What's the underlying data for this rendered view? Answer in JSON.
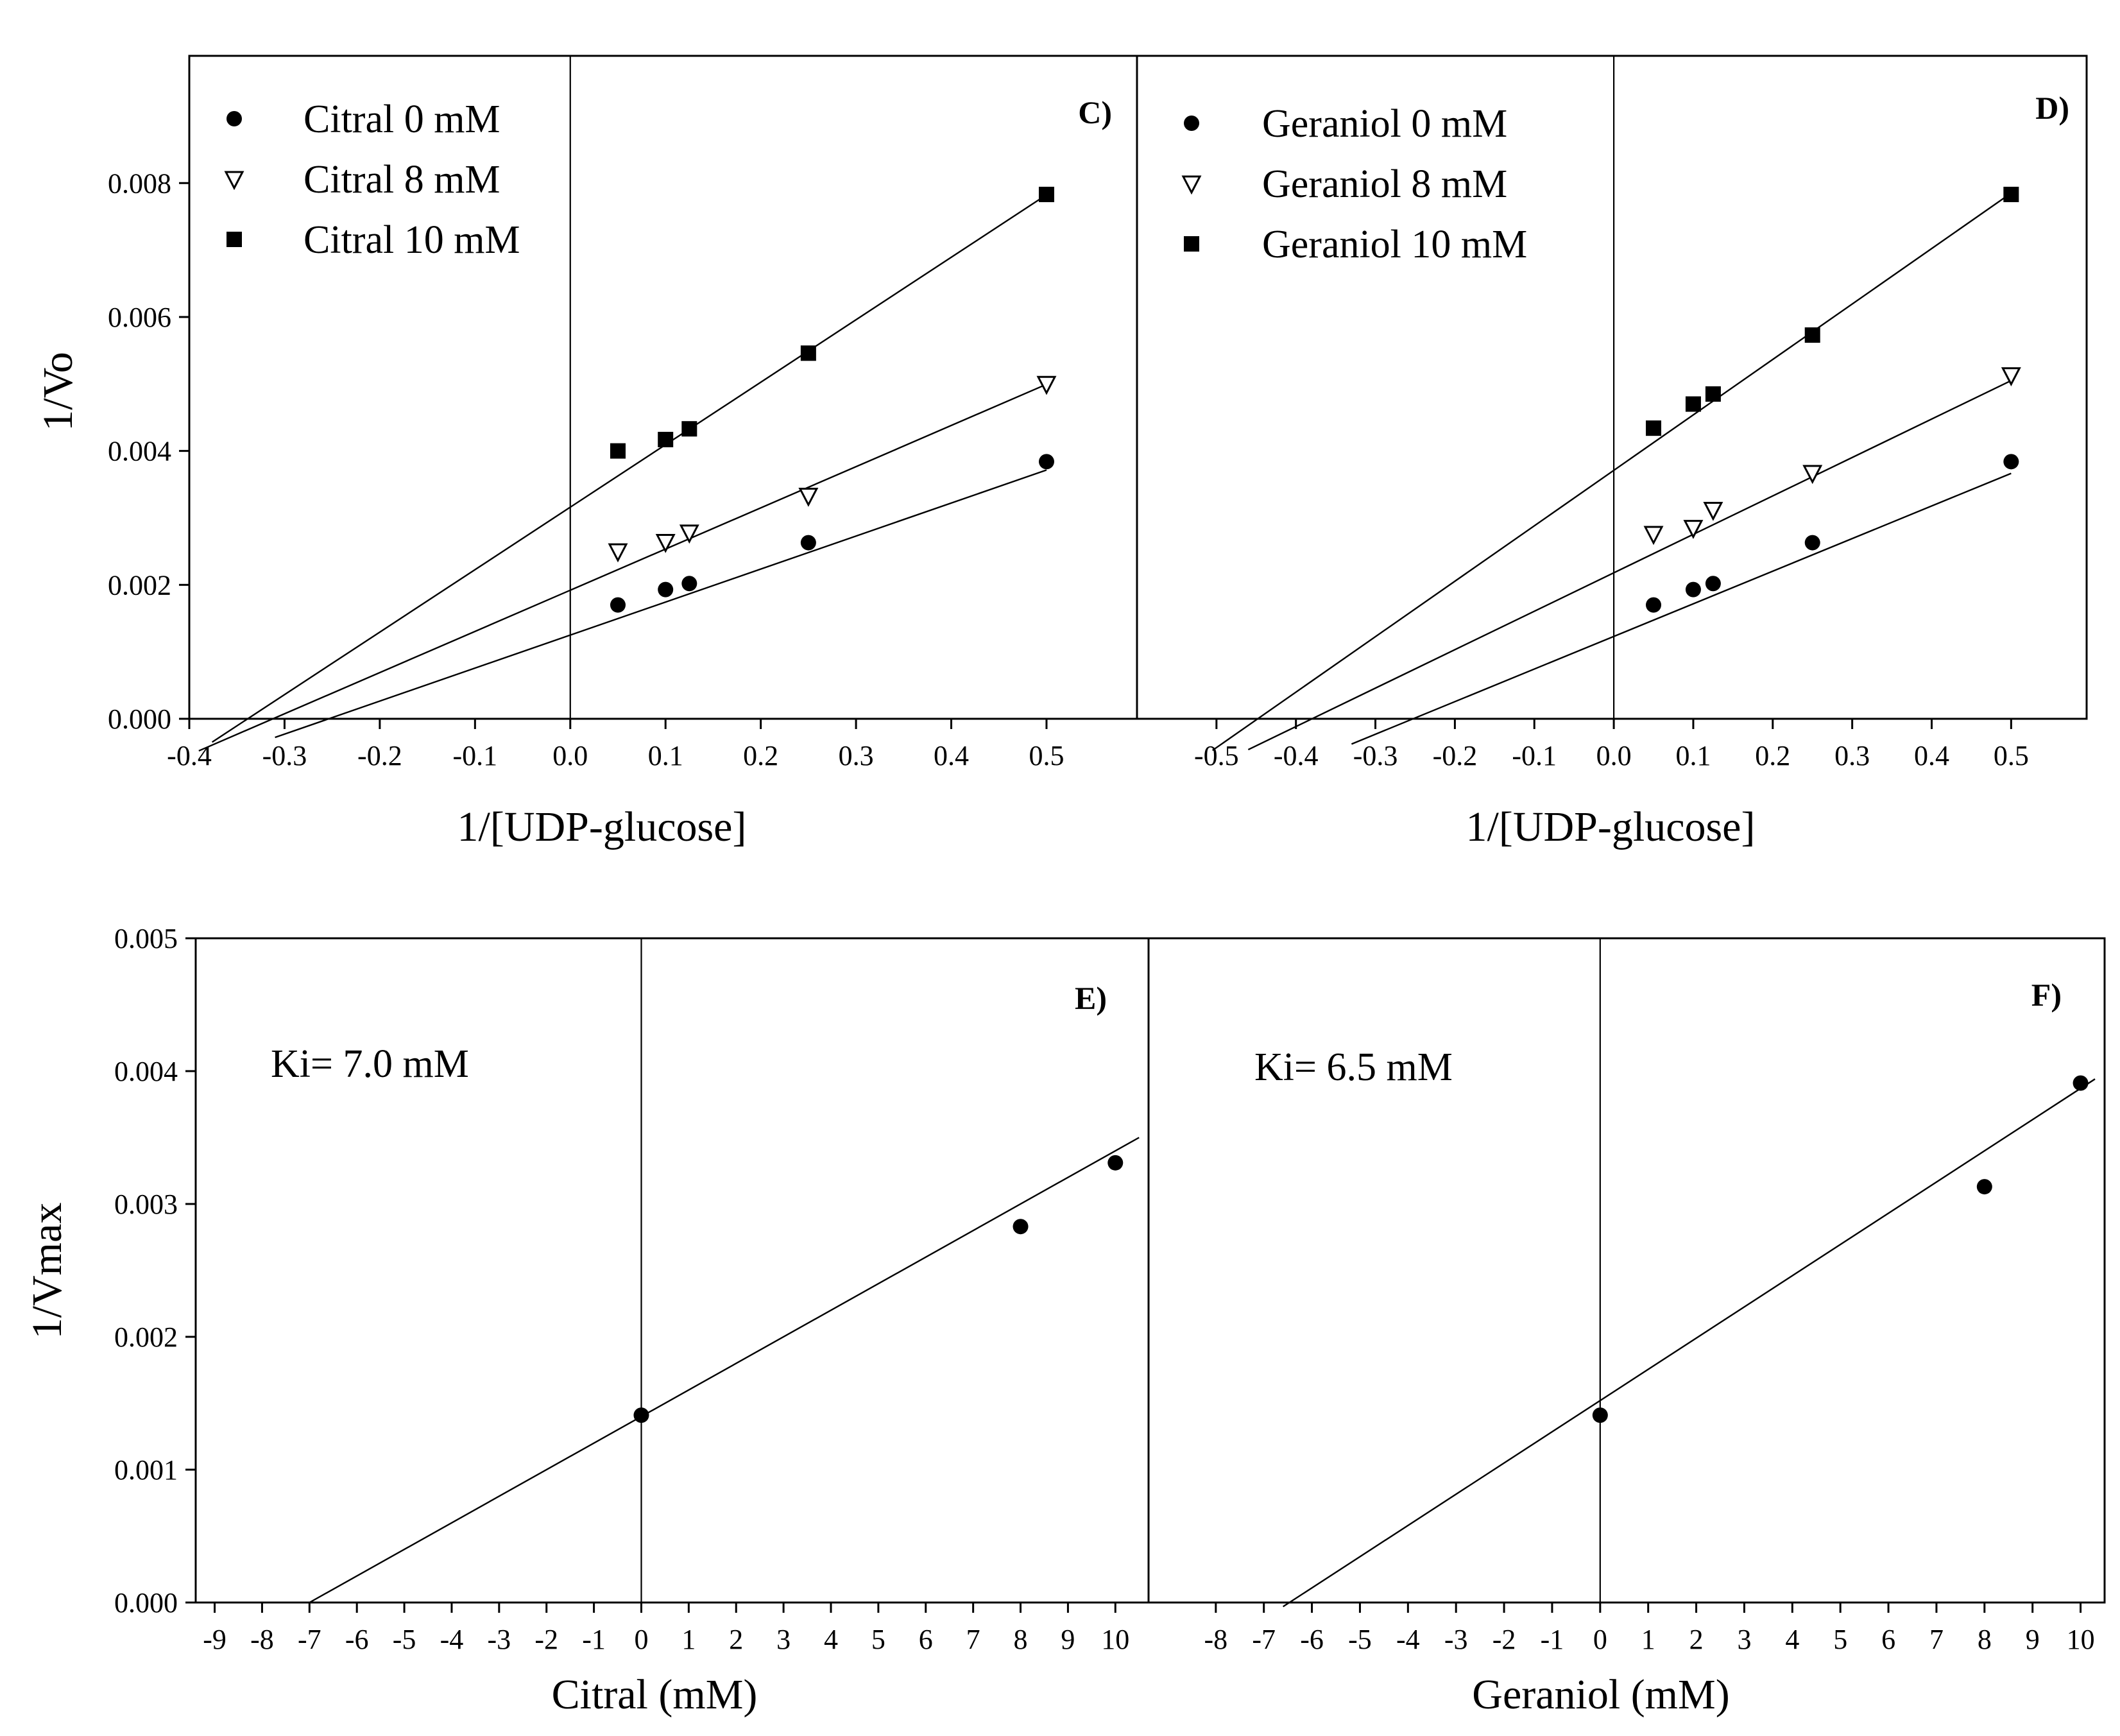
{
  "figure": {
    "top_y_axis_label": "1/Vo",
    "top_x_axis_label": "1/[UDP-glucose]",
    "bottom_y_axis_label": "1/Vmax",
    "bottom_left_x_axis_label": "Citral (mM)",
    "bottom_right_x_axis_label": "Geraniol (mM)"
  },
  "chart_data": [
    {
      "panel": "C)",
      "type": "scatter",
      "xlabel": "1/[UDP-glucose]",
      "ylabel": "1/Vo",
      "xlim": [
        -0.4,
        0.595
      ],
      "ylim": [
        0,
        0.0099
      ],
      "xticks": [
        "-0.4",
        "-0.3",
        "-0.2",
        "-0.1",
        "0.0",
        "0.1",
        "0.2",
        "0.3",
        "0.4",
        "0.5"
      ],
      "yticks": [
        "0.000",
        "0.002",
        "0.004",
        "0.006",
        "0.008"
      ],
      "legend_position": "top-left",
      "series": [
        {
          "name": "Citral 0 mM",
          "marker": "circle",
          "x": [
            0.05,
            0.1,
            0.125,
            0.25,
            0.5
          ],
          "y": [
            0.0017,
            0.00193,
            0.00202,
            0.00263,
            0.00384
          ],
          "fit": {
            "slope": 0.00493,
            "intercept": 0.00125,
            "x_from": -0.31,
            "x_to": 0.5
          }
        },
        {
          "name": "Citral 8 mM",
          "marker": "triangle-down",
          "x": [
            0.05,
            0.1,
            0.125,
            0.25,
            0.5
          ],
          "y": [
            0.0025,
            0.00264,
            0.00278,
            0.00333,
            0.005
          ],
          "fit": {
            "slope": 0.00615,
            "intercept": 0.00192,
            "x_from": -0.39,
            "x_to": 0.5
          }
        },
        {
          "name": "Citral 10 mM",
          "marker": "square",
          "x": [
            0.05,
            0.1,
            0.125,
            0.25,
            0.5
          ],
          "y": [
            0.004,
            0.00417,
            0.00433,
            0.00546,
            0.00783
          ],
          "fit": {
            "slope": 0.00933,
            "intercept": 0.00316,
            "x_from": -0.376,
            "x_to": 0.5
          }
        }
      ]
    },
    {
      "panel": "D)",
      "type": "scatter",
      "xlabel": "1/[UDP-glucose]",
      "ylabel": "1/Vo",
      "xlim": [
        -0.6,
        0.595
      ],
      "ylim": [
        0,
        0.0099
      ],
      "xticks": [
        "-0.5",
        "-0.4",
        "-0.3",
        "-0.2",
        "-0.1",
        "0.0",
        "0.1",
        "0.2",
        "0.3",
        "0.4",
        "0.5"
      ],
      "yticks": [],
      "legend_position": "top-left",
      "series": [
        {
          "name": "Geraniol 0 mM",
          "marker": "circle",
          "x": [
            0.05,
            0.1,
            0.125,
            0.25,
            0.5
          ],
          "y": [
            0.0017,
            0.00193,
            0.00202,
            0.00263,
            0.00384
          ],
          "fit": {
            "slope": 0.00487,
            "intercept": 0.00123,
            "x_from": -0.33,
            "x_to": 0.5
          }
        },
        {
          "name": "Geraniol 8 mM",
          "marker": "triangle-down",
          "x": [
            0.05,
            0.1,
            0.125,
            0.25,
            0.5
          ],
          "y": [
            0.00276,
            0.00285,
            0.00312,
            0.00367,
            0.00513
          ],
          "fit": {
            "slope": 0.00574,
            "intercept": 0.00218,
            "x_from": -0.46,
            "x_to": 0.5
          }
        },
        {
          "name": "Geraniol 10 mM",
          "marker": "square",
          "x": [
            0.05,
            0.1,
            0.125,
            0.25,
            0.5
          ],
          "y": [
            0.00434,
            0.0047,
            0.00485,
            0.00573,
            0.00783
          ],
          "fit": {
            "slope": 0.00828,
            "intercept": 0.00371,
            "x_from": -0.505,
            "x_to": 0.5
          }
        }
      ]
    },
    {
      "panel": "E)",
      "type": "scatter",
      "xlabel": "Citral (mM)",
      "ylabel": "1/Vmax",
      "xlim": [
        -9.4,
        10.7
      ],
      "ylim": [
        0,
        0.005
      ],
      "xticks": [
        "-9",
        "-8",
        "-7",
        "-6",
        "-5",
        "-4",
        "-3",
        "-2",
        "-1",
        "0",
        "1",
        "2",
        "3",
        "4",
        "5",
        "6",
        "7",
        "8",
        "9",
        "10"
      ],
      "yticks": [
        "0.000",
        "0.001",
        "0.002",
        "0.003",
        "0.004",
        "0.005"
      ],
      "annotation": "Ki= 7.0 mM",
      "series": [
        {
          "name": "Citral",
          "marker": "circle",
          "x": [
            0,
            8,
            10
          ],
          "y": [
            0.00141,
            0.00283,
            0.00331
          ],
          "fit": {
            "slope": 0.0002,
            "intercept": 0.0014,
            "x_from": -7.0,
            "x_to": 10.5
          }
        }
      ]
    },
    {
      "panel": "F)",
      "type": "scatter",
      "xlabel": "Geraniol (mM)",
      "ylabel": "1/Vmax",
      "xlim": [
        -9.4,
        10.5
      ],
      "ylim": [
        0,
        0.005
      ],
      "xticks": [
        "-8",
        "-7",
        "-6",
        "-5",
        "-4",
        "-3",
        "-2",
        "-1",
        "0",
        "1",
        "2",
        "3",
        "4",
        "5",
        "6",
        "7",
        "8",
        "9",
        "10"
      ],
      "yticks": [],
      "annotation": "Ki= 6.5 mM",
      "series": [
        {
          "name": "Geraniol",
          "marker": "circle",
          "x": [
            0,
            8,
            10
          ],
          "y": [
            0.00141,
            0.00313,
            0.00391
          ],
          "fit": {
            "slope": 0.000235,
            "intercept": 0.00152,
            "x_from": -6.6,
            "x_to": 10.3
          }
        }
      ]
    }
  ]
}
